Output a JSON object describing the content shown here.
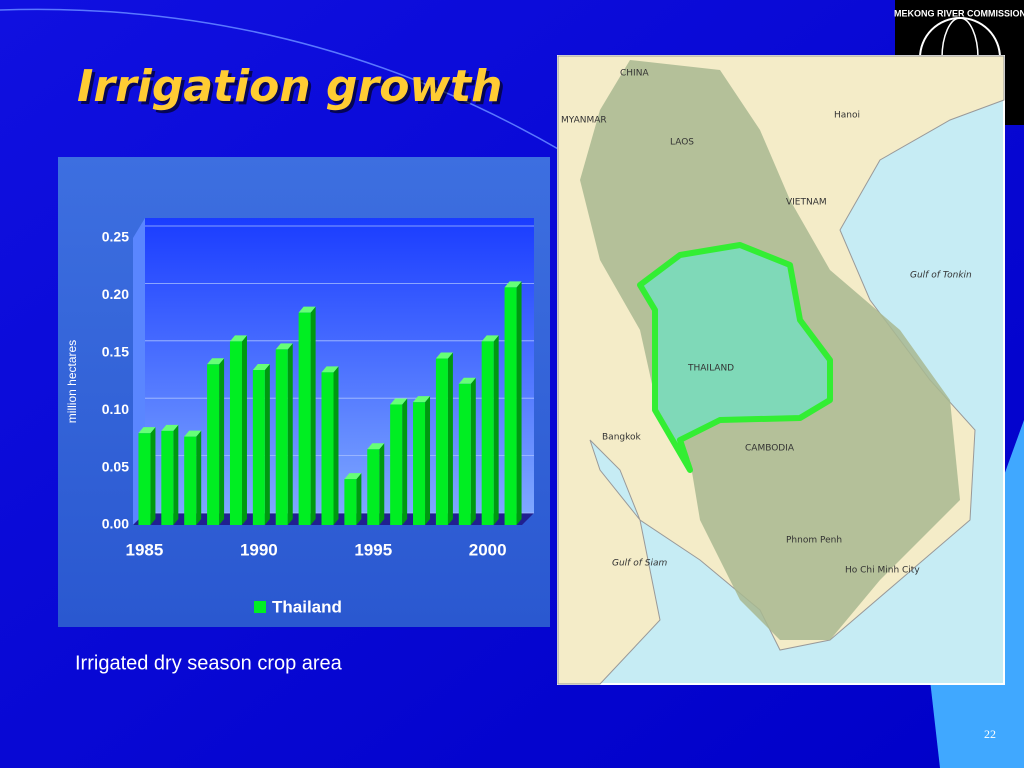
{
  "title": "Irrigation growth",
  "caption": "Irrigated dry season crop area",
  "page_number": "22",
  "logo": "MEKONG RIVER COMMISSION",
  "map": {
    "labels": [
      "CHINA",
      "MYANMAR",
      "LAOS",
      "Hanoi",
      "VIETNAM",
      "Gulf of Tonkin",
      "THAILAND",
      "Bangkok",
      "CAMBODIA",
      "Gulf of Siam",
      "Phnom Penh",
      "Ho Chi Minh City"
    ]
  },
  "chart_data": {
    "type": "bar",
    "categories": [
      "1985",
      null,
      null,
      null,
      null,
      "1990",
      null,
      null,
      null,
      null,
      "1995",
      null,
      null,
      null,
      null,
      "2000",
      null
    ],
    "series": [
      {
        "name": "Thailand",
        "color": "#00ee22",
        "values": [
          0.08,
          0.082,
          0.077,
          0.14,
          0.16,
          0.135,
          0.153,
          0.185,
          0.133,
          0.04,
          0.066,
          0.105,
          0.107,
          0.145,
          0.123,
          0.16,
          0.207
        ]
      }
    ],
    "y_label": "million hectares",
    "ylim": [
      0,
      0.25
    ],
    "yticks": [
      {
        "value": 0,
        "label": "0.00"
      },
      {
        "value": 0.05,
        "label": "0.05"
      },
      {
        "value": 0.1,
        "label": "0.10"
      },
      {
        "value": 0.15,
        "label": "0.15"
      },
      {
        "value": 0.2,
        "label": "0.20"
      },
      {
        "value": 0.25,
        "label": "0.25"
      }
    ],
    "grid": true
  }
}
